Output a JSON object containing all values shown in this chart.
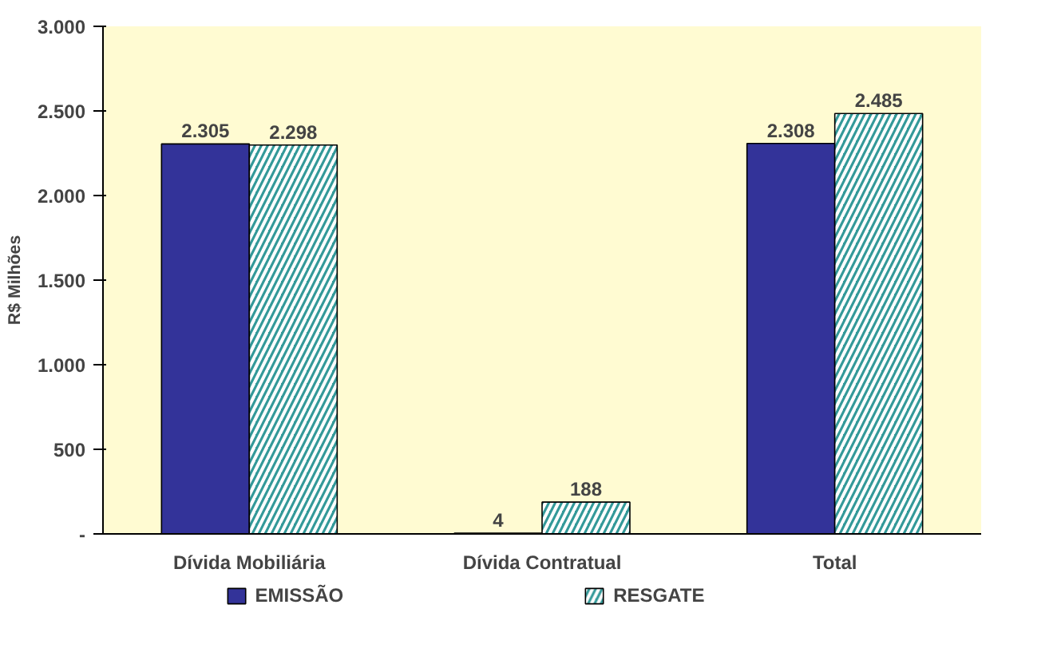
{
  "chart_data": {
    "type": "bar",
    "ylabel": "R$ Milhões",
    "categories": [
      "Dívida Mobiliária",
      "Dívida Contratual",
      "Total"
    ],
    "series": [
      {
        "name": "EMISSÃO",
        "color": "#333399",
        "values": [
          2305,
          4,
          2308
        ],
        "value_labels": [
          "2.305",
          "4",
          "2.308"
        ]
      },
      {
        "name": "RESGATE",
        "color": "#339999",
        "values": [
          2298,
          188,
          2485
        ],
        "value_labels": [
          "2.298",
          "188",
          "2.485"
        ]
      }
    ],
    "ylim": [
      0,
      3000
    ],
    "yticks": [
      {
        "value": 0,
        "label": "-"
      },
      500,
      {
        "value": 1000,
        "label": "1.000"
      },
      {
        "value": 1500,
        "label": "1.500"
      },
      {
        "value": 2000,
        "label": "2.000"
      },
      {
        "value": 2500,
        "label": "2.500"
      },
      {
        "value": 3000,
        "label": "3.000"
      }
    ],
    "grid": false,
    "legend": "bottom"
  }
}
